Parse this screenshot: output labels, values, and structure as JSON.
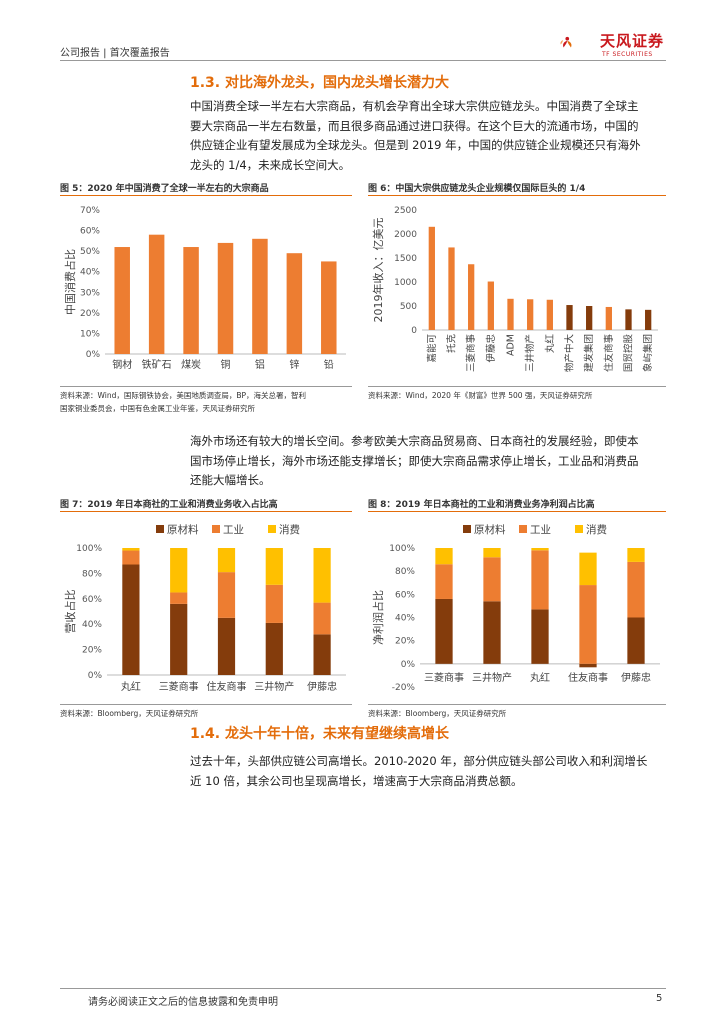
{
  "header": {
    "text": "公司报告 | 首次覆盖报告",
    "logo_cn": "天风证券",
    "logo_en": "TF SECURITIES"
  },
  "section13": {
    "title": "1.3. 对比海外龙头，国内龙头增长潜力大",
    "paragraph_lines": [
      "中国消费全球一半左右大宗商品，有机会孕育出全球大宗供应链龙头。中国消费了全球主",
      "要大宗商品一半左右数量，而且很多商品通过进口获得。在这个巨大的流通市场，中国的",
      "供应链企业有望发展成为全球龙头。但是到 2019 年，中国的供应链企业规模还只有海外",
      "龙头的 1/4，未来成长空间大。"
    ]
  },
  "fig5": {
    "title": "图 5：2020 年中国消费了全球一半左右的大宗商品",
    "source_lines": [
      "资料来源：Wind，国际钢铁协会，美国地质调查局，BP，海关总署，智利",
      "国家铜业委员会，中国有色金属工业年鉴，天风证券研究所"
    ]
  },
  "fig6": {
    "title": "图 6：中国大宗供应链龙头企业规模仅国际巨头的 1/4",
    "source_lines": [
      "资料来源：Wind，2020 年《财富》世界 500 强，天风证券研究所"
    ]
  },
  "middle": {
    "paragraph_lines": [
      "海外市场还有较大的增长空间。参考欧美大宗商品贸易商、日本商社的发展经验，即使本",
      "国市场停止增长，海外市场还能支撑增长；即使大宗商品需求停止增长，工业品和消费品",
      "还能大幅增长。"
    ]
  },
  "fig7": {
    "title": "图 7：2019 年日本商社的工业和消费业务收入占比高",
    "source_lines": [
      "资料来源：Bloomberg，天风证券研究所"
    ]
  },
  "fig8": {
    "title": "图 8：2019 年日本商社的工业和消费业务净利润占比高",
    "source_lines": [
      "资料来源：Bloomberg，天风证券研究所"
    ]
  },
  "section14": {
    "title": "1.4. 龙头十年十倍，未来有望继续高增长",
    "paragraph_lines": [
      "过去十年，头部供应链公司高增长。2010-2020 年，部分供应链头部公司收入和利润增长",
      "近 10 倍，其余公司也呈现高增长，增速高于大宗商品消费总额。"
    ]
  },
  "footer": {
    "disclaimer": "请务必阅读正文之后的信息披露和免责申明",
    "page": "5"
  },
  "colors": {
    "orange": "#ed7d31",
    "brown": "#843c0c",
    "yellow": "#ffc000",
    "title_orange": "#e36c0a"
  },
  "chart_data": [
    {
      "id": "fig5",
      "type": "bar",
      "ylabel": "中国消费占比",
      "categories": [
        "钢材",
        "铁矿石",
        "煤炭",
        "铜",
        "铝",
        "锌",
        "铅"
      ],
      "values": [
        52,
        58,
        52,
        54,
        56,
        49,
        45
      ],
      "ylim": [
        0,
        70
      ],
      "yticks": [
        "0%",
        "10%",
        "20%",
        "30%",
        "40%",
        "50%",
        "60%",
        "70%"
      ],
      "color": "#ed7d31",
      "grid": false
    },
    {
      "id": "fig6",
      "type": "bar",
      "ylabel": "2019年收入：亿美元",
      "categories": [
        "嘉能可",
        "托克",
        "三菱商事",
        "伊藤忠",
        "ADM",
        "三井物产",
        "丸红",
        "物产中大",
        "建发集团",
        "住友商事",
        "国贸控股",
        "象屿集团"
      ],
      "values": [
        2150,
        1720,
        1370,
        1010,
        650,
        640,
        630,
        520,
        500,
        480,
        430,
        420
      ],
      "colors": [
        "#ed7d31",
        "#ed7d31",
        "#ed7d31",
        "#ed7d31",
        "#ed7d31",
        "#ed7d31",
        "#ed7d31",
        "#843c0c",
        "#843c0c",
        "#ed7d31",
        "#843c0c",
        "#843c0c"
      ],
      "ylim": [
        0,
        2500
      ],
      "yticks": [
        "0",
        "500",
        "1000",
        "1500",
        "2000",
        "2500"
      ],
      "grid": false
    },
    {
      "id": "fig7",
      "type": "bar",
      "stacked": true,
      "ylabel": "营收占比",
      "categories": [
        "丸红",
        "三菱商事",
        "住友商事",
        "三井物产",
        "伊藤忠"
      ],
      "series": [
        {
          "name": "原材料",
          "color": "#843c0c",
          "values": [
            87,
            56,
            45,
            41,
            32
          ]
        },
        {
          "name": "工业",
          "color": "#ed7d31",
          "values": [
            11,
            9,
            36,
            30,
            25
          ]
        },
        {
          "name": "消费",
          "color": "#ffc000",
          "values": [
            2,
            35,
            19,
            29,
            43
          ]
        }
      ],
      "ylim": [
        0,
        100
      ],
      "yticks": [
        "0%",
        "20%",
        "40%",
        "60%",
        "80%",
        "100%"
      ],
      "legend": "top"
    },
    {
      "id": "fig8",
      "type": "bar",
      "stacked": true,
      "ylabel": "净利润占比",
      "categories": [
        "三菱商事",
        "三井物产",
        "丸红",
        "住友商事",
        "伊藤忠"
      ],
      "series": [
        {
          "name": "原材料",
          "color": "#843c0c",
          "values": [
            56,
            54,
            47,
            -3,
            40
          ]
        },
        {
          "name": "工业",
          "color": "#ed7d31",
          "values": [
            30,
            38,
            51,
            68,
            48
          ]
        },
        {
          "name": "消费",
          "color": "#ffc000",
          "values": [
            14,
            8,
            2,
            28,
            12
          ]
        }
      ],
      "ylim": [
        -20,
        100
      ],
      "yticks": [
        "-20%",
        "0%",
        "20%",
        "40%",
        "60%",
        "80%",
        "100%"
      ],
      "legend": "top"
    }
  ]
}
